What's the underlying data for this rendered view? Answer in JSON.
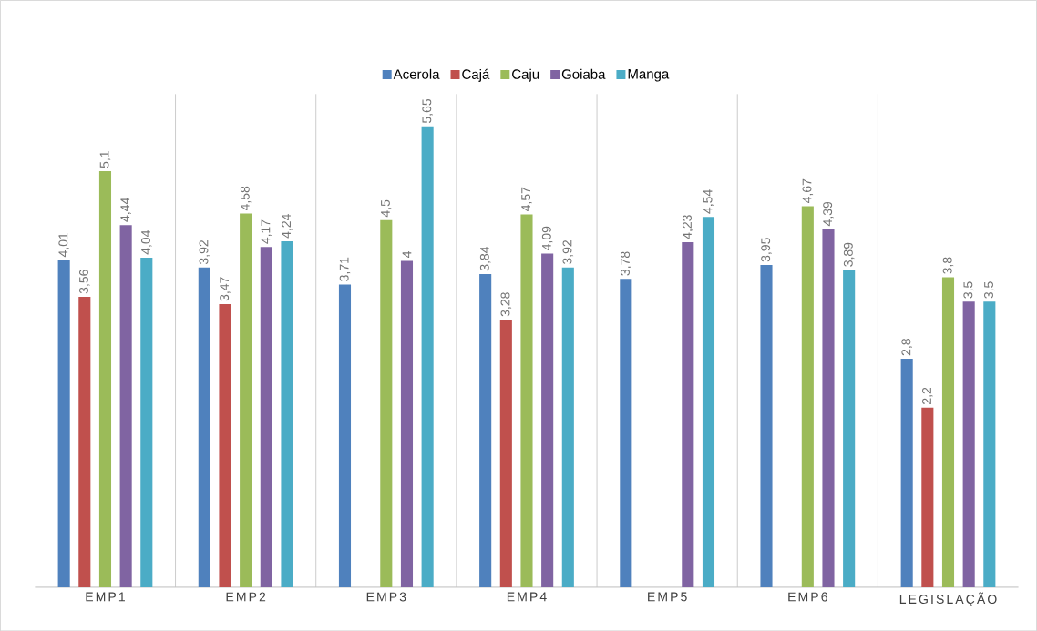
{
  "chart_data": {
    "type": "bar",
    "categories": [
      "EMP1",
      "EMP2",
      "EMP3",
      "EMP4",
      "EMP5",
      "EMP6",
      "LEGISLAÇÃO"
    ],
    "series": [
      {
        "name": "Acerola",
        "color": "#4f81bd",
        "values": [
          4.01,
          3.92,
          3.71,
          3.84,
          3.78,
          3.95,
          2.8
        ],
        "value_labels": [
          "4,01",
          "3,92",
          "3,71",
          "3,84",
          "3,78",
          "3,95",
          "2,8"
        ]
      },
      {
        "name": "Cajá",
        "color": "#c0504d",
        "values": [
          3.56,
          3.47,
          null,
          3.28,
          null,
          null,
          2.2
        ],
        "value_labels": [
          "3,56",
          "3,47",
          null,
          "3,28",
          null,
          null,
          "2,2"
        ]
      },
      {
        "name": "Caju",
        "color": "#9bbb59",
        "values": [
          5.1,
          4.58,
          4.5,
          4.57,
          null,
          4.67,
          3.8
        ],
        "value_labels": [
          "5,1",
          "4,58",
          "4,5",
          "4,57",
          null,
          "4,67",
          "3,8"
        ]
      },
      {
        "name": "Goiaba",
        "color": "#8064a2",
        "values": [
          4.44,
          4.17,
          4,
          4.09,
          4.23,
          4.39,
          3.5
        ],
        "value_labels": [
          "4,44",
          "4,17",
          "4",
          "4,09",
          "4,23",
          "4,39",
          "3,5"
        ]
      },
      {
        "name": "Manga",
        "color": "#4bacc6",
        "values": [
          4.04,
          4.24,
          5.65,
          3.92,
          4.54,
          3.89,
          3.5
        ],
        "value_labels": [
          "4,04",
          "4,24",
          "5,65",
          "3,92",
          "4,54",
          "3,89",
          "3,5"
        ]
      }
    ],
    "grid": "x",
    "legend": "top"
  }
}
